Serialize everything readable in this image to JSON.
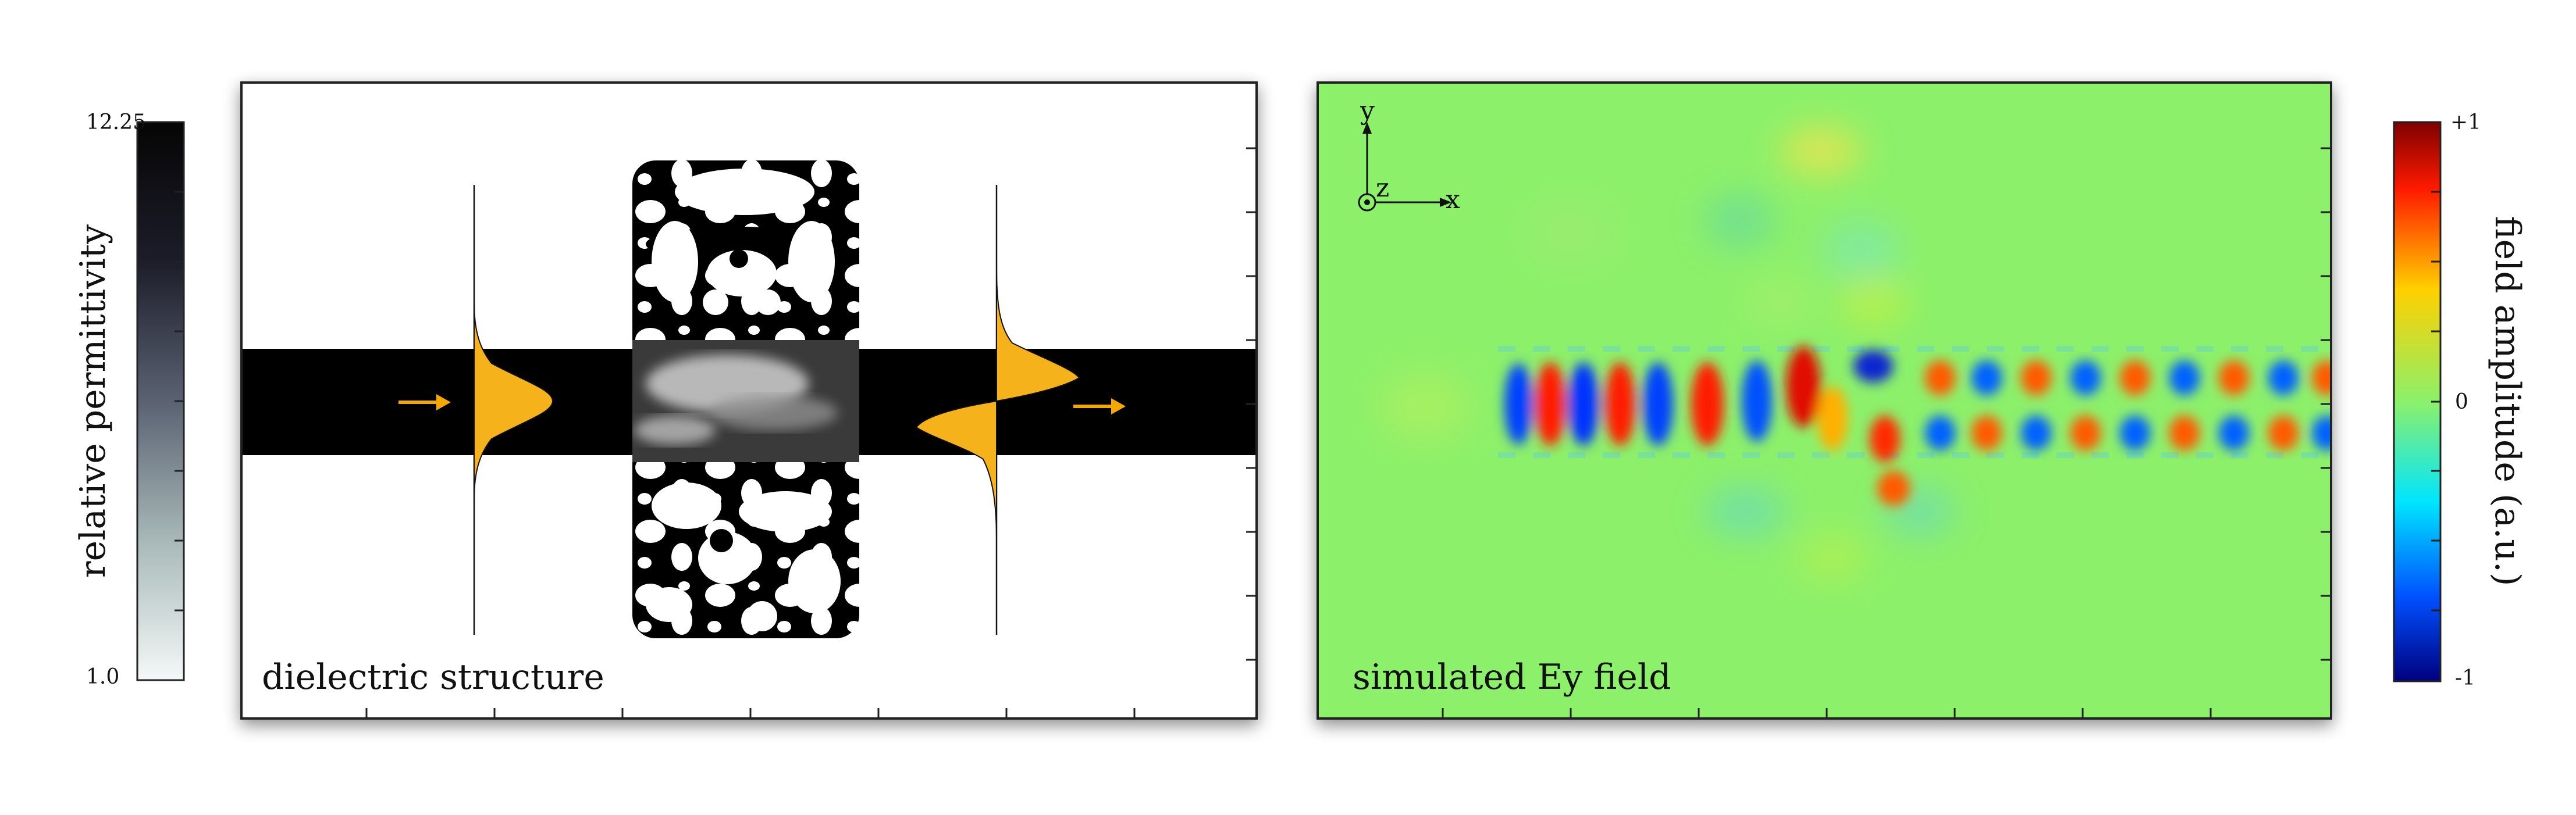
{
  "left_colorbar": {
    "max_label": "12.25",
    "min_label": "1.0",
    "axis_label": "relative permittivity",
    "color_top": "#050505",
    "color_bottom": "#f4f8f8"
  },
  "left_panel": {
    "caption": "dielectric structure",
    "waveguide_color": "#000000",
    "mode_fill_color": "#f5b21b",
    "arrow_color": "#f5a800",
    "input_mode": "fundamental (even)",
    "output_mode": "first-order (odd)"
  },
  "right_panel": {
    "caption": "simulated Ey field",
    "background_color": "#8cf06a",
    "axis_x_label": "x",
    "axis_y_label": "y",
    "axis_z_label": "z"
  },
  "right_colorbar": {
    "max_label": "+1",
    "mid_label": "0",
    "min_label": "-1",
    "axis_label": "field amplitude (a.u.)",
    "colormap": [
      "#7f0000",
      "#ff2a00",
      "#ffd000",
      "#8cf06a",
      "#00e5ff",
      "#0050ff",
      "#00007f"
    ]
  }
}
